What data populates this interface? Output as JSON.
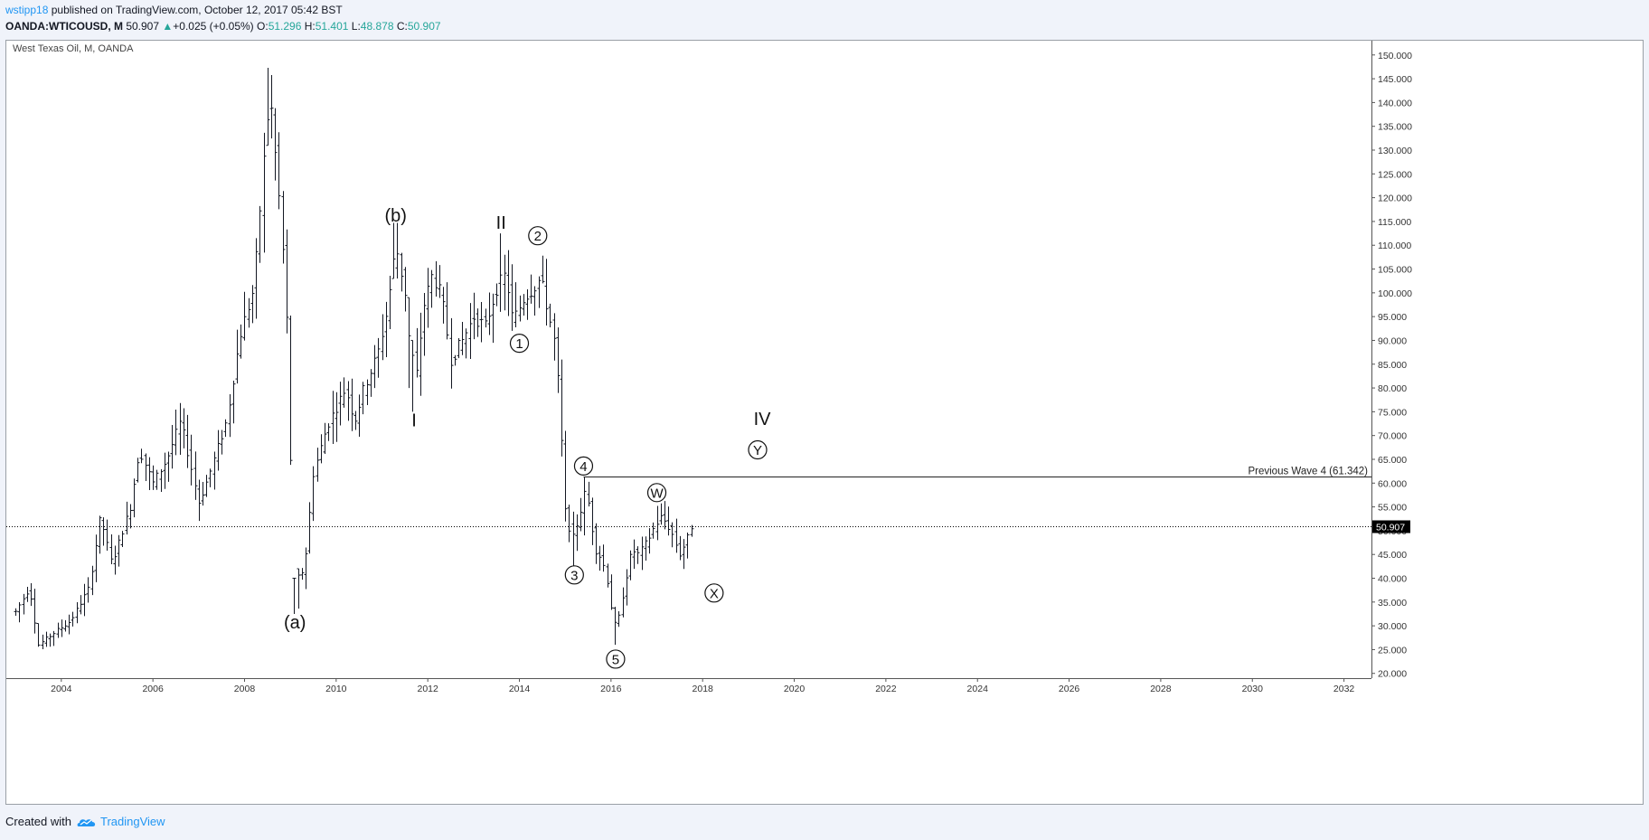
{
  "header": {
    "author": "wstipp18",
    "published_text": "published on TradingView.com, October 12, 2017 05:42 BST",
    "symbol_line": "OANDA:WTICOUSD, M",
    "last": "50.907",
    "change_arrow": "▲",
    "change": "+0.025 (+0.05%)",
    "o_label": "O:",
    "o_value": "51.296",
    "h_label": "H:",
    "h_value": "51.401",
    "l_label": "L:",
    "l_value": "48.878",
    "c_label": "C:",
    "c_value": "50.907"
  },
  "footer": {
    "created_with": "Created with",
    "brand": "TradingView"
  },
  "colors": {
    "bars": "#131722",
    "brand": "#2196f3",
    "green": "#26a69a",
    "price_tag_bg": "#000000"
  },
  "chart_data": {
    "type": "ohlc",
    "title": "West Texas Oil, M, OANDA",
    "xlim": [
      2002.8,
      2032.6
    ],
    "ylim": [
      19.0,
      153.0
    ],
    "x_ticks": [
      "2004",
      "2006",
      "2008",
      "2010",
      "2012",
      "2014",
      "2016",
      "2018",
      "2020",
      "2022",
      "2024",
      "2026",
      "2028",
      "2030",
      "2032"
    ],
    "y_ticks": [
      "20.000",
      "25.000",
      "30.000",
      "35.000",
      "40.000",
      "45.000",
      "50.000",
      "55.000",
      "60.000",
      "65.000",
      "70.000",
      "75.000",
      "80.000",
      "85.000",
      "90.000",
      "95.000",
      "100.000",
      "105.000",
      "110.000",
      "115.000",
      "120.000",
      "125.000",
      "130.000",
      "135.000",
      "140.000",
      "145.000",
      "150.000"
    ],
    "current_price": 50.907,
    "current_price_label": "50.907",
    "hline": {
      "value": 61.342,
      "start_x": 2015.4,
      "label": "Previous Wave 4 (61.342)"
    },
    "wave_labels": [
      {
        "text": "(b)",
        "x": 2011.3,
        "y": 116.5,
        "circled": false
      },
      {
        "text": "II",
        "x": 2013.6,
        "y": 115.0,
        "circled": false
      },
      {
        "text": "2",
        "x": 2014.4,
        "y": 112.0,
        "circled": true
      },
      {
        "text": "1",
        "x": 2014.0,
        "y": 89.4,
        "circled": true
      },
      {
        "text": "I",
        "x": 2011.7,
        "y": 73.5,
        "circled": false
      },
      {
        "text": "IV",
        "x": 2019.3,
        "y": 73.7,
        "circled": false
      },
      {
        "text": "Y",
        "x": 2019.2,
        "y": 67.0,
        "circled": true
      },
      {
        "text": "4",
        "x": 2015.4,
        "y": 63.6,
        "circled": true
      },
      {
        "text": "W",
        "x": 2017.0,
        "y": 58.0,
        "circled": true
      },
      {
        "text": "3",
        "x": 2015.2,
        "y": 40.7,
        "circled": true
      },
      {
        "text": "X",
        "x": 2018.25,
        "y": 36.9,
        "circled": true
      },
      {
        "text": "(a)",
        "x": 2009.1,
        "y": 31.0,
        "circled": false
      },
      {
        "text": "5",
        "x": 2016.1,
        "y": 23.0,
        "circled": true
      }
    ],
    "anchors": [
      [
        2003.0,
        33
      ],
      [
        2003.3,
        38
      ],
      [
        2003.5,
        26
      ],
      [
        2003.9,
        29
      ],
      [
        2004.2,
        31
      ],
      [
        2004.6,
        38
      ],
      [
        2004.85,
        53
      ],
      [
        2005.1,
        43
      ],
      [
        2005.5,
        55
      ],
      [
        2005.7,
        67
      ],
      [
        2006.0,
        60
      ],
      [
        2006.3,
        65
      ],
      [
        2006.6,
        73
      ],
      [
        2007.0,
        56
      ],
      [
        2007.2,
        61
      ],
      [
        2007.6,
        73
      ],
      [
        2007.9,
        91
      ],
      [
        2008.2,
        101
      ],
      [
        2008.45,
        132
      ],
      [
        2008.55,
        142
      ],
      [
        2008.75,
        120
      ],
      [
        2008.9,
        100
      ],
      [
        2009.0,
        65
      ],
      [
        2009.15,
        40
      ],
      [
        2009.3,
        42
      ],
      [
        2009.5,
        62
      ],
      [
        2009.8,
        72
      ],
      [
        2010.0,
        76
      ],
      [
        2010.2,
        80
      ],
      [
        2010.4,
        73
      ],
      [
        2010.6,
        80
      ],
      [
        2010.9,
        87
      ],
      [
        2011.1,
        96
      ],
      [
        2011.3,
        110
      ],
      [
        2011.5,
        100
      ],
      [
        2011.6,
        89
      ],
      [
        2011.75,
        83
      ],
      [
        2011.9,
        97
      ],
      [
        2012.1,
        104
      ],
      [
        2012.3,
        99
      ],
      [
        2012.5,
        86
      ],
      [
        2012.75,
        90
      ],
      [
        2013.0,
        95
      ],
      [
        2013.25,
        93
      ],
      [
        2013.5,
        101
      ],
      [
        2013.7,
        104
      ],
      [
        2013.85,
        94
      ],
      [
        2014.1,
        99
      ],
      [
        2014.3,
        101
      ],
      [
        2014.45,
        103
      ],
      [
        2014.6,
        97
      ],
      [
        2014.75,
        90
      ],
      [
        2014.85,
        80
      ],
      [
        2015.0,
        54
      ],
      [
        2015.15,
        48
      ],
      [
        2015.3,
        53
      ],
      [
        2015.45,
        59
      ],
      [
        2015.65,
        46
      ],
      [
        2015.8,
        44
      ],
      [
        2015.95,
        38
      ],
      [
        2016.05,
        30
      ],
      [
        2016.15,
        31
      ],
      [
        2016.3,
        39
      ],
      [
        2016.45,
        46
      ],
      [
        2016.6,
        45
      ],
      [
        2016.8,
        48
      ],
      [
        2016.95,
        51
      ],
      [
        2017.1,
        53
      ],
      [
        2017.3,
        50
      ],
      [
        2017.5,
        45
      ],
      [
        2017.65,
        48
      ],
      [
        2017.75,
        50.9
      ]
    ],
    "overrides": {
      "2003.5": [
        25.6,
        30.5
      ],
      "2008.5": [
        131,
        147.3
      ],
      "2009.1": [
        32.5,
        40
      ],
      "2009.2": [
        33.6,
        42
      ],
      "2011.3": [
        103,
        114.7
      ],
      "2011.6": [
        80,
        99
      ],
      "2011.7": [
        75,
        90
      ],
      "2013.6": [
        96,
        112.5
      ],
      "2014.5": [
        102,
        107.8
      ],
      "2015.2": [
        42.5,
        54
      ],
      "2015.4": [
        49,
        61.3
      ],
      "2016.1": [
        26,
        34
      ],
      "2017.0": [
        48,
        55.2
      ]
    }
  }
}
